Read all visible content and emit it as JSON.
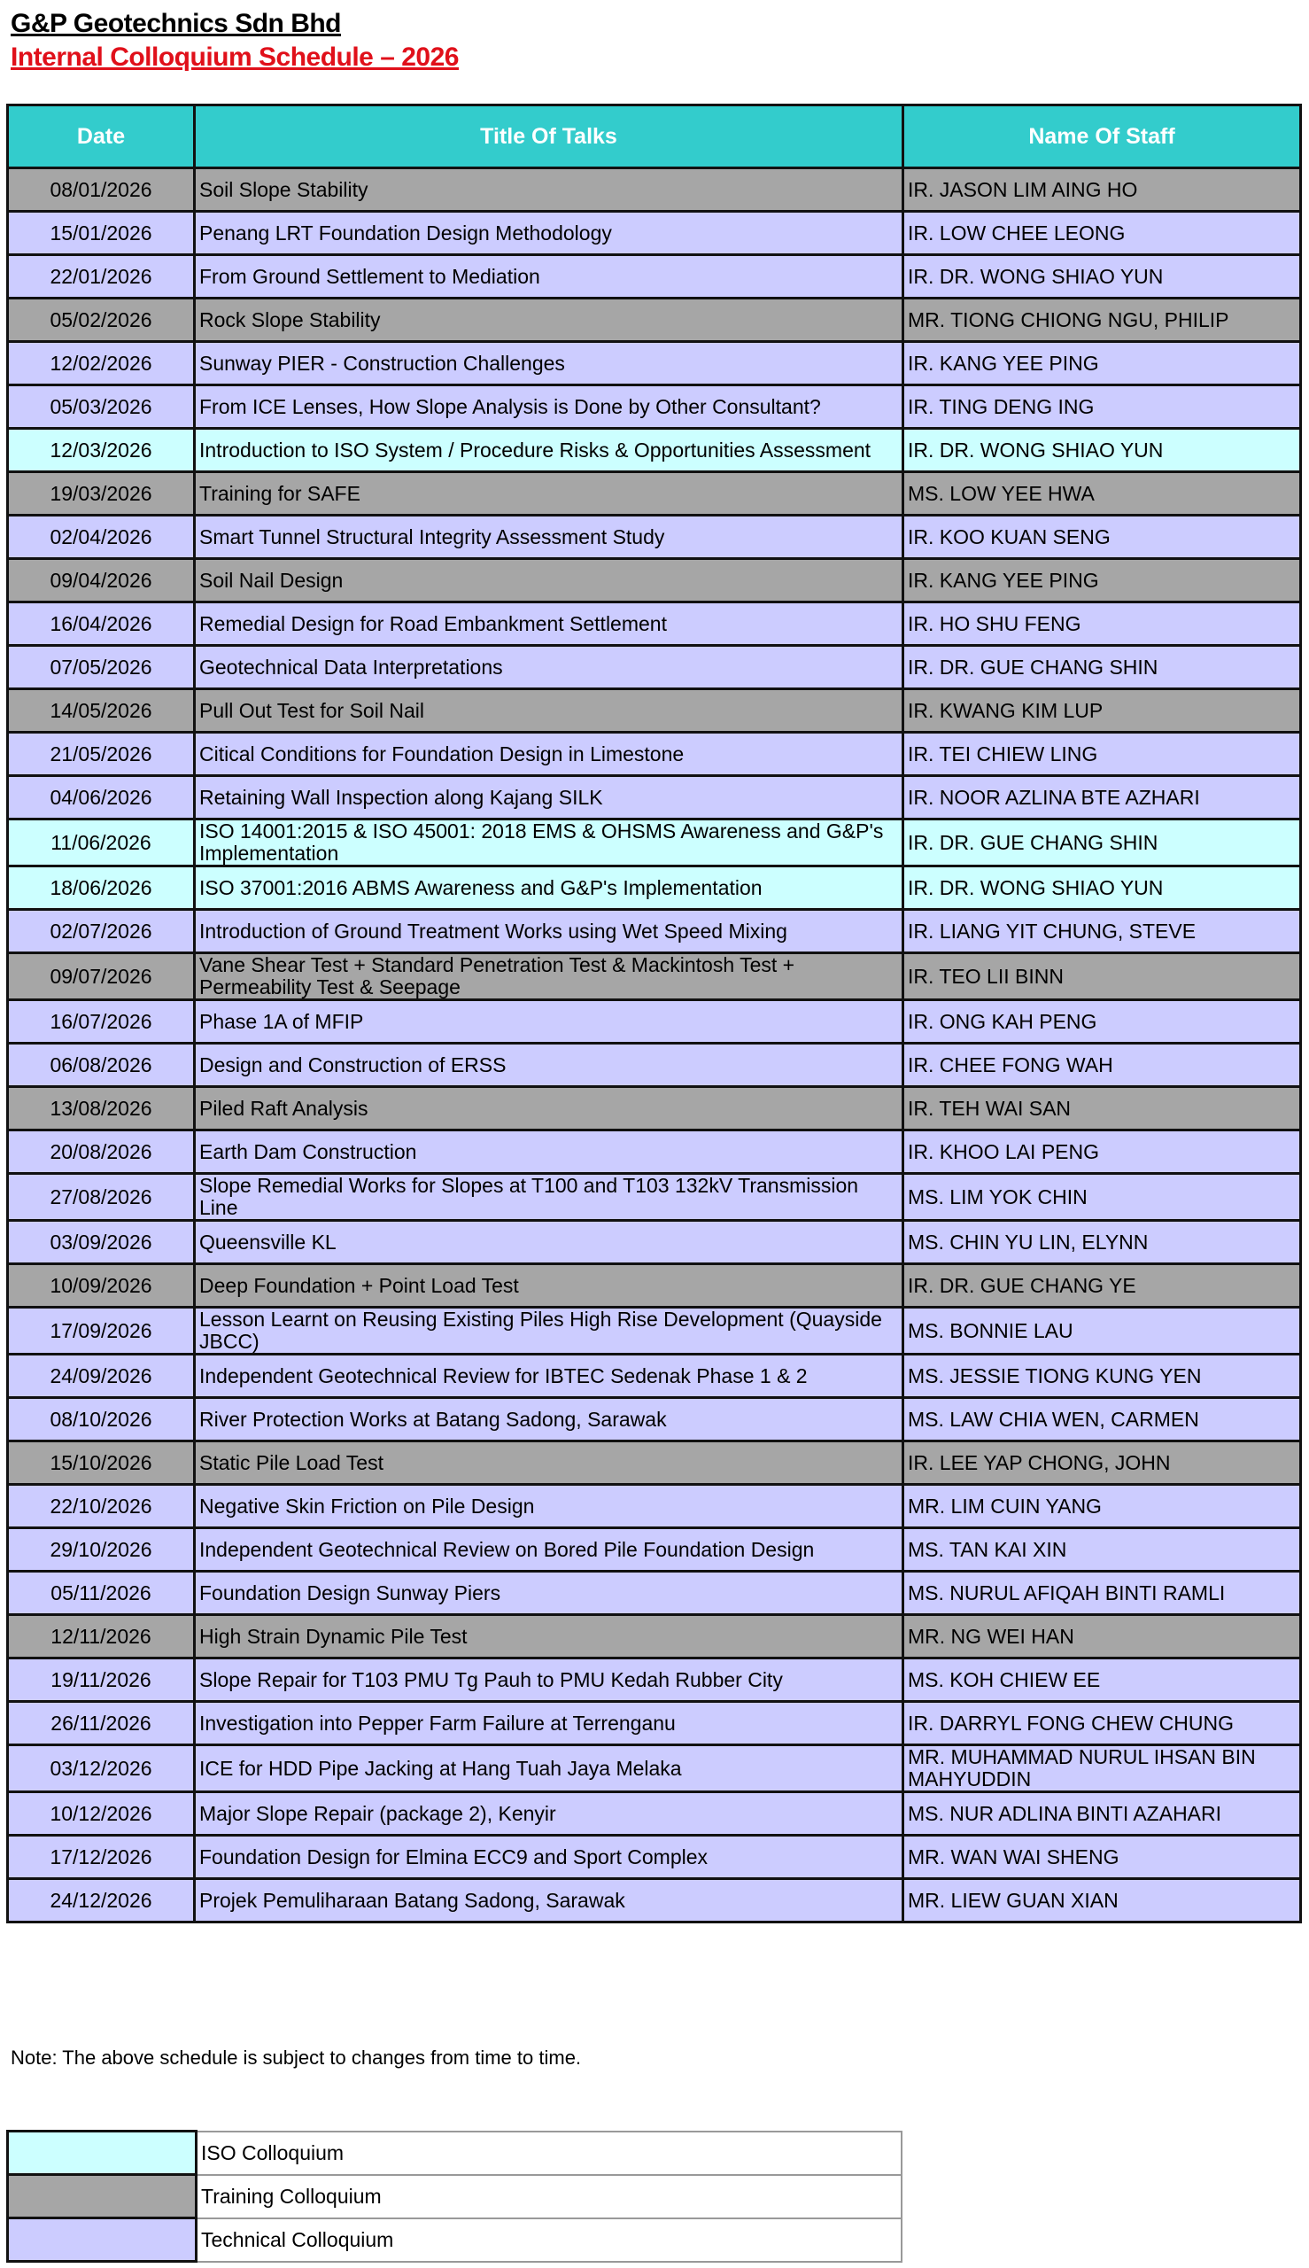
{
  "header": {
    "company": "G&P Geotechnics Sdn Bhd",
    "title": "Internal Colloquium Schedule – 2026"
  },
  "table": {
    "columns": [
      "Date",
      "Title Of Talks",
      "Name Of Staff"
    ],
    "rows": [
      {
        "date": "08/01/2026",
        "title": "Soil Slope Stability",
        "staff": "IR. JASON LIM AING HO",
        "type": "training"
      },
      {
        "date": "15/01/2026",
        "title": "Penang LRT Foundation Design Methodology",
        "staff": "IR. LOW CHEE LEONG",
        "type": "technical"
      },
      {
        "date": "22/01/2026",
        "title": "From Ground Settlement to Mediation",
        "staff": "IR. DR. WONG SHIAO YUN",
        "type": "technical"
      },
      {
        "date": "05/02/2026",
        "title": "Rock Slope Stability",
        "staff": "MR. TIONG CHIONG NGU, PHILIP",
        "type": "training"
      },
      {
        "date": "12/02/2026",
        "title": "Sunway PIER - Construction Challenges",
        "staff": "IR. KANG YEE PING",
        "type": "technical"
      },
      {
        "date": "05/03/2026",
        "title": "From ICE Lenses, How Slope Analysis is Done by Other Consultant?",
        "staff": "IR. TING DENG ING",
        "type": "technical"
      },
      {
        "date": "12/03/2026",
        "title": "Introduction to ISO System / Procedure Risks & Opportunities Assessment",
        "staff": "IR. DR. WONG SHIAO YUN",
        "type": "iso"
      },
      {
        "date": "19/03/2026",
        "title": "Training for SAFE",
        "staff": "MS. LOW YEE HWA",
        "type": "training"
      },
      {
        "date": "02/04/2026",
        "title": "Smart Tunnel Structural Integrity Assessment Study",
        "staff": "IR. KOO KUAN SENG",
        "type": "technical"
      },
      {
        "date": "09/04/2026",
        "title": "Soil Nail Design",
        "staff": "IR. KANG YEE PING",
        "type": "training"
      },
      {
        "date": "16/04/2026",
        "title": "Remedial Design for Road Embankment Settlement",
        "staff": "IR. HO SHU FENG",
        "type": "technical"
      },
      {
        "date": "07/05/2026",
        "title": "Geotechnical Data Interpretations",
        "staff": "IR. DR. GUE CHANG SHIN",
        "type": "technical"
      },
      {
        "date": "14/05/2026",
        "title": "Pull Out Test for Soil Nail",
        "staff": "IR. KWANG KIM LUP",
        "type": "training"
      },
      {
        "date": "21/05/2026",
        "title": "Citical Conditions for Foundation Design in Limestone",
        "staff": "IR. TEI CHIEW LING",
        "type": "technical"
      },
      {
        "date": "04/06/2026",
        "title": "Retaining Wall Inspection along Kajang SILK",
        "staff": "IR. NOOR AZLINA BTE AZHARI",
        "type": "technical"
      },
      {
        "date": "11/06/2026",
        "title": "ISO 14001:2015 & ISO 45001: 2018 EMS & OHSMS Awareness and G&P's Implementation",
        "staff": "IR. DR. GUE CHANG SHIN",
        "type": "iso"
      },
      {
        "date": "18/06/2026",
        "title": "ISO 37001:2016 ABMS Awareness and G&P's Implementation",
        "staff": "IR. DR. WONG SHIAO YUN",
        "type": "iso"
      },
      {
        "date": "02/07/2026",
        "title": "Introduction of Ground Treatment Works using Wet Speed Mixing",
        "staff": "IR. LIANG YIT CHUNG, STEVE",
        "type": "technical"
      },
      {
        "date": "09/07/2026",
        "title": "Vane Shear Test + Standard Penetration Test & Mackintosh Test + Permeability Test & Seepage",
        "staff": "IR. TEO LII BINN",
        "type": "training"
      },
      {
        "date": "16/07/2026",
        "title": "Phase 1A of MFIP",
        "staff": "IR. ONG KAH PENG",
        "type": "technical"
      },
      {
        "date": "06/08/2026",
        "title": "Design and Construction of ERSS",
        "staff": "IR. CHEE FONG WAH",
        "type": "technical"
      },
      {
        "date": "13/08/2026",
        "title": "Piled Raft Analysis",
        "staff": "IR. TEH WAI SAN",
        "type": "training"
      },
      {
        "date": "20/08/2026",
        "title": "Earth Dam Construction",
        "staff": "IR. KHOO LAI PENG",
        "type": "technical"
      },
      {
        "date": "27/08/2026",
        "title": "Slope Remedial Works for Slopes at T100 and T103 132kV Transmission Line",
        "staff": "MS. LIM YOK CHIN",
        "type": "technical"
      },
      {
        "date": "03/09/2026",
        "title": "Queensville KL",
        "staff": "MS. CHIN YU LIN, ELYNN",
        "type": "technical"
      },
      {
        "date": "10/09/2026",
        "title": "Deep Foundation + Point Load Test",
        "staff": "IR. DR. GUE CHANG YE",
        "type": "training"
      },
      {
        "date": "17/09/2026",
        "title": "Lesson Learnt on Reusing Existing Piles High Rise Development (Quayside JBCC)",
        "staff": "MS. BONNIE LAU",
        "type": "technical"
      },
      {
        "date": "24/09/2026",
        "title": " Independent Geotechnical Review for IBTEC Sedenak Phase 1 & 2",
        "staff": "MS. JESSIE TIONG KUNG YEN",
        "type": "technical"
      },
      {
        "date": "08/10/2026",
        "title": "River Protection Works at Batang Sadong, Sarawak",
        "staff": "MS. LAW CHIA WEN, CARMEN",
        "type": "technical"
      },
      {
        "date": "15/10/2026",
        "title": "Static Pile Load Test",
        "staff": "IR. LEE YAP CHONG, JOHN",
        "type": "training"
      },
      {
        "date": "22/10/2026",
        "title": "Negative Skin Friction on Pile Design",
        "staff": "MR. LIM CUIN YANG",
        "type": "technical"
      },
      {
        "date": "29/10/2026",
        "title": "Independent Geotechnical Review on Bored Pile Foundation Design",
        "staff": "MS. TAN KAI XIN",
        "type": "technical"
      },
      {
        "date": "05/11/2026",
        "title": "Foundation Design Sunway Piers",
        "staff": "MS. NURUL AFIQAH BINTI RAMLI",
        "type": "technical"
      },
      {
        "date": "12/11/2026",
        "title": "High Strain Dynamic Pile Test",
        "staff": "MR. NG WEI HAN",
        "type": "training"
      },
      {
        "date": "19/11/2026",
        "title": "Slope Repair for T103 PMU Tg Pauh to PMU Kedah Rubber City",
        "staff": "MS. KOH CHIEW EE",
        "type": "technical"
      },
      {
        "date": "26/11/2026",
        "title": "Investigation into Pepper Farm Failure at Terrenganu",
        "staff": "IR. DARRYL FONG CHEW CHUNG",
        "type": "technical"
      },
      {
        "date": "03/12/2026",
        "title": "ICE for HDD Pipe Jacking at Hang Tuah Jaya Melaka",
        "staff": "MR. MUHAMMAD NURUL IHSAN BIN MAHYUDDIN",
        "type": "technical"
      },
      {
        "date": "10/12/2026",
        "title": "Major Slope Repair (package 2), Kenyir",
        "staff": "MS. NUR ADLINA BINTI AZAHARI",
        "type": "technical"
      },
      {
        "date": "17/12/2026",
        "title": "Foundation Design for Elmina ECC9 and Sport Complex",
        "staff": "MR. WAN WAI SHENG",
        "type": "technical"
      },
      {
        "date": "24/12/2026",
        "title": "Projek Pemuliharaan Batang Sadong, Sarawak",
        "staff": "MR. LIEW GUAN XIAN",
        "type": "technical"
      }
    ]
  },
  "note": "Note: The above schedule is subject to changes from time to time.",
  "legend": [
    {
      "label": "ISO Colloquium",
      "type": "iso",
      "color": "#ccffff"
    },
    {
      "label": "Training Colloquium",
      "type": "training",
      "color": "#a6a6a6"
    },
    {
      "label": "Technical Colloquium",
      "type": "technical",
      "color": "#ccccff"
    }
  ],
  "colors": {
    "header": "#33cccc",
    "title_red": "#e0101a",
    "training": "#a6a6a6",
    "technical": "#ccccff",
    "iso": "#ccffff"
  }
}
